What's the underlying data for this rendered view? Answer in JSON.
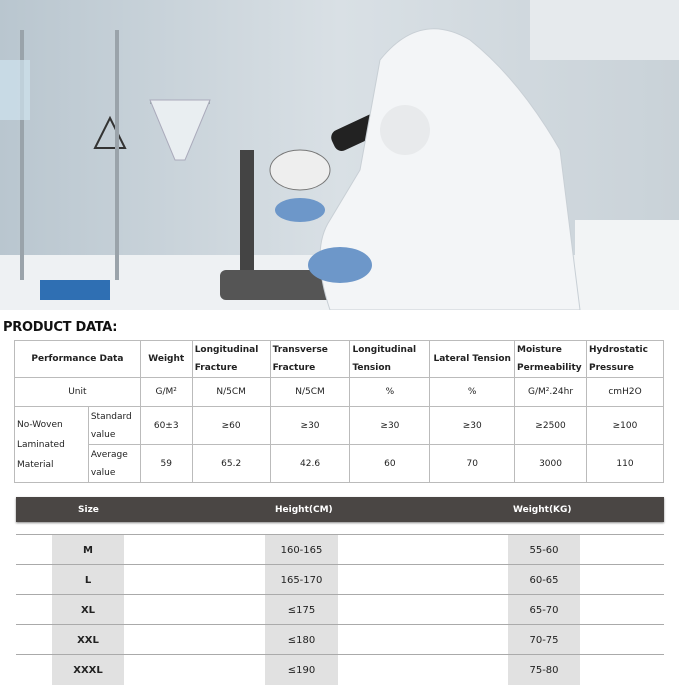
{
  "photo": {
    "description_icon": "lab-scientist-photo"
  },
  "title": "PRODUCT DATA:",
  "performance": {
    "headers": [
      "Performance Data",
      "Weight",
      "Longitudinal Fracture",
      "Transverse Fracture",
      "Longitudinal Tension",
      "Lateral Tension",
      "Moisture Permeability",
      "Hydrostatic Pressure"
    ],
    "unit_label": "Unit",
    "units": [
      "G/M²",
      "N/5CM",
      "N/5CM",
      "%",
      "%",
      "G/M².24hr",
      "cmH2O"
    ],
    "material": "No-Woven Laminated Material",
    "standard_label": "Standard value",
    "standard": [
      "60±3",
      "≥60",
      "≥30",
      "≥30",
      "≥30",
      "≥2500",
      "≥100"
    ],
    "average_label": "Average value",
    "average": [
      "59",
      "65.2",
      "42.6",
      "60",
      "70",
      "3000",
      "110"
    ]
  },
  "sizes": {
    "headers": [
      "Size",
      "Height(CM)",
      "Weight(KG)"
    ],
    "rows": [
      [
        "M",
        "160-165",
        "55-60"
      ],
      [
        "L",
        "165-170",
        "60-65"
      ],
      [
        "XL",
        "≤175",
        "65-70"
      ],
      [
        "XXL",
        "≤180",
        "70-75"
      ],
      [
        "XXXL",
        "≤190",
        "75-80"
      ]
    ]
  },
  "colors": {
    "header_bar": "#4a4644",
    "cell_gray": "#e1e1e1"
  }
}
